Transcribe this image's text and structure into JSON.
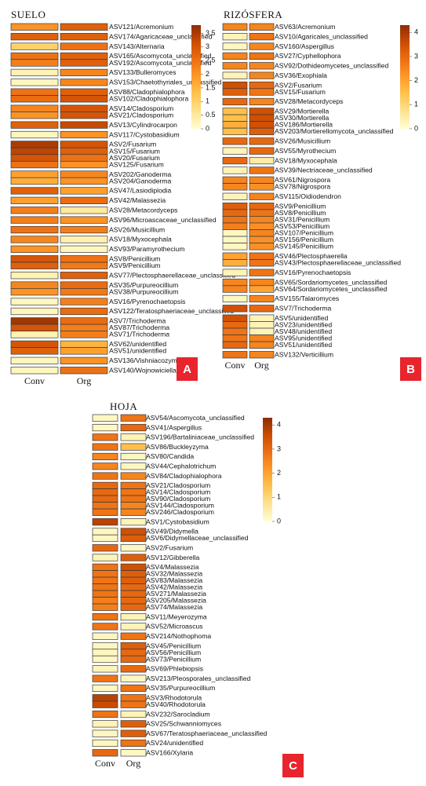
{
  "chart_data": [
    {
      "type": "heatmap",
      "title": "SUELO",
      "panel_label": "A",
      "columns": [
        "Conv",
        "Org"
      ],
      "colorscale": [
        "#ffffd4",
        "#fee391",
        "#fec44f",
        "#fe9929",
        "#ec7014",
        "#cc4c02",
        "#8c2d04"
      ],
      "zlim": [
        0,
        3.8
      ],
      "zticks": [
        0,
        0.5,
        1,
        1.5,
        2,
        2.5,
        3,
        3.5
      ],
      "rows": [
        "ASV121/Acremonium",
        "ASV174/Agaricaceae_unclassified",
        "ASV143/Alternaria",
        "ASV165/Ascomycota_unclassified",
        "ASV192/Ascomycota_unclassified",
        "ASV133/Bulleromyces",
        "ASV153/Chaetothyriales_unclassified",
        "ASV88/Cladophialophora",
        "ASV102/Cladophialophora",
        "ASV14/Cladosporium",
        "ASV21/Cladosporium",
        "ASV13/Cylindrocarpon",
        "ASV117/Cystobasidium",
        "ASV2/Fusarium",
        "ASV15/Fusarium",
        "ASV20/Fusarium",
        "ASV125/Fusarium",
        "ASV202/Ganoderma",
        "ASV204/Ganoderma",
        "ASV47/Lasiodiplodia",
        "ASV42/Malassezia",
        "ASV28/Metacordyceps",
        "ASV96/Microascaceae_unclassified",
        "ASV26/Musicillium",
        "ASV18/Myxocephala",
        "ASV93/Paramyrothecium",
        "ASV8/Penicillium",
        "ASV9/Penicillium",
        "ASV77/Plectosphaerellaceae_unclassified",
        "ASV35/Purpureocillium",
        "ASV38/Purpureocillium",
        "ASV16/Pyrenochaetopsis",
        "ASV122/Teratosphaeriaceae_unclassified",
        "ASV7/Trichoderma",
        "ASV87/Trichoderma",
        "ASV71/Trichoderma",
        "ASV62/unidentified",
        "ASV51/unidentified",
        "ASV136/Vishniacozyma",
        "ASV140/Wojnowiciella"
      ],
      "values": [
        [
          2,
          2.8
        ],
        [
          2.8,
          2.8
        ],
        [
          1,
          2.5
        ],
        [
          2.5,
          2.8
        ],
        [
          2.3,
          2.8
        ],
        [
          0.3,
          2.2
        ],
        [
          0.2,
          2.2
        ],
        [
          2.5,
          2.8
        ],
        [
          2.6,
          3
        ],
        [
          2.2,
          3
        ],
        [
          2,
          3
        ],
        [
          2.8,
          3.2
        ],
        [
          0.2,
          2
        ],
        [
          3.5,
          3
        ],
        [
          3.3,
          2.8
        ],
        [
          3,
          2.5
        ],
        [
          2.5,
          2
        ],
        [
          1.8,
          2.2
        ],
        [
          1.6,
          2
        ],
        [
          2.8,
          1.8
        ],
        [
          1.8,
          2.6
        ],
        [
          2.3,
          0.5
        ],
        [
          2.3,
          2
        ],
        [
          2.5,
          2.3
        ],
        [
          2.2,
          0.3
        ],
        [
          2,
          0.2
        ],
        [
          3,
          2.5
        ],
        [
          2.8,
          2.4
        ],
        [
          0.3,
          2.8
        ],
        [
          2.2,
          2.6
        ],
        [
          2,
          2.4
        ],
        [
          0.2,
          2.3
        ],
        [
          0.2,
          2.6
        ],
        [
          3.6,
          2.6
        ],
        [
          3,
          2.3
        ],
        [
          0.3,
          2.3
        ],
        [
          3,
          1.5
        ],
        [
          2.8,
          1.8
        ],
        [
          0.2,
          2
        ],
        [
          0.2,
          2.5
        ]
      ]
    },
    {
      "type": "heatmap",
      "title": "RIZÓSFERA",
      "panel_label": "B",
      "columns": [
        "Conv",
        "Org"
      ],
      "colorscale": [
        "#ffffd4",
        "#fee391",
        "#fec44f",
        "#fe9929",
        "#ec7014",
        "#cc4c02",
        "#8c2d04"
      ],
      "zlim": [
        0,
        4.3
      ],
      "zticks": [
        0,
        1,
        2,
        3,
        4
      ],
      "rows": [
        "ASV63/Acremonium",
        "ASV10/Agaricales_unclassified",
        "ASV160/Aspergillus",
        "ASV27/Cyphellophora",
        "ASV92/Dothideomycetes_unclassified",
        "ASV36/Exophiala",
        "ASV2/Fusarium",
        "ASV15/Fusarium",
        "ASV28/Metacordyceps",
        "ASV29/Mortierella",
        "ASV30/Mortierella",
        "ASV186/Mortierella",
        "ASV203/Mortierellomycota_unclassified",
        "ASV26/Musicillium",
        "ASV55/Myrothecium",
        "ASV18/Myxocephala",
        "ASV39/Nectriaceae_unclassified",
        "ASV61/Nigrospora",
        "ASV78/Nigrospora",
        "ASV115/Oidiodendron",
        "ASV9/Penicillium",
        "ASV8/Penicillium",
        "ASV31/Penicillium",
        "ASV53/Penicillium",
        "ASV107/Penicillium",
        "ASV156/Penicillium",
        "ASV145/Penicillium",
        "ASV46/Plectosphaerella",
        "ASV43/Plectosphaerellaceae_unclassified",
        "ASV16/Pyrenochaetopsis",
        "ASV65/Sordariomycetes_unclassified",
        "ASV64/Sordariomycetes_unclassified",
        "ASV155/Talaromyces",
        "ASV7/Trichoderma",
        "ASV5/unidentified",
        "ASV23/unidentified",
        "ASV48/unidentified",
        "ASV95/unidentified",
        "ASV51/unidentified",
        "ASV132/Verticillium"
      ],
      "values": [
        [
          2.5,
          2.5
        ],
        [
          0.3,
          2.8
        ],
        [
          0.2,
          2.5
        ],
        [
          2.5,
          2.8
        ],
        [
          2.5,
          2.5
        ],
        [
          0.3,
          2.5
        ],
        [
          3.5,
          3
        ],
        [
          3.2,
          2.8
        ],
        [
          3,
          2.5
        ],
        [
          1.5,
          3.5
        ],
        [
          1.5,
          3.5
        ],
        [
          1.8,
          3.5
        ],
        [
          1.5,
          3.2
        ],
        [
          3,
          3
        ],
        [
          0.3,
          3
        ],
        [
          3,
          0.5
        ],
        [
          0.3,
          2.8
        ],
        [
          2.5,
          2.5
        ],
        [
          2.5,
          2.3
        ],
        [
          0.3,
          2.5
        ],
        [
          3.2,
          3
        ],
        [
          3,
          2.8
        ],
        [
          2.8,
          2.5
        ],
        [
          2.6,
          2.3
        ],
        [
          0.2,
          2.5
        ],
        [
          0.2,
          2.3
        ],
        [
          0.2,
          2.3
        ],
        [
          2,
          2.8
        ],
        [
          1.8,
          2.8
        ],
        [
          0.3,
          2.8
        ],
        [
          2.5,
          2.5
        ],
        [
          2.5,
          2
        ],
        [
          0.2,
          2.5
        ],
        [
          3.5,
          3
        ],
        [
          3.5,
          0.3
        ],
        [
          3,
          0.3
        ],
        [
          2.8,
          0.3
        ],
        [
          2.8,
          2.5
        ],
        [
          3,
          2.5
        ],
        [
          2.8,
          2.5
        ]
      ]
    },
    {
      "type": "heatmap",
      "title": "HOJA",
      "panel_label": "C",
      "columns": [
        "Conv",
        "Org"
      ],
      "colorscale": [
        "#ffffd4",
        "#fee391",
        "#fec44f",
        "#fe9929",
        "#ec7014",
        "#cc4c02",
        "#8c2d04"
      ],
      "zlim": [
        0,
        4.3
      ],
      "zticks": [
        0,
        1,
        2,
        3,
        4
      ],
      "rows": [
        "ASV54/Ascomycota_unclassified",
        "ASV41/Aspergillus",
        "ASV196/Bartaliniaceae_unclassified",
        "ASV86/Buckleyzyma",
        "ASV80/Candida",
        "ASV44/Cephalotrichum",
        "ASV84/Cladophialophora",
        "ASV21/Cladosporium",
        "ASV14/Cladosporium",
        "ASV90/Cladosporium",
        "ASV144/Cladosporium",
        "ASV246/Cladosporium",
        "ASV1/Cystobasidium",
        "ASV49/Didymella",
        "ASV6/Didymellaceae_unclassified",
        "ASV2/Fusarium",
        "ASV12/Gibberella",
        "ASV4/Malassezia",
        "ASV32/Malassezia",
        "ASV83/Malassezia",
        "ASV42/Malassezia",
        "ASV271/Malassezia",
        "ASV205/Malassezia",
        "ASV74/Malassezia",
        "ASV11/Meyerozyma",
        "ASV52/Microascus",
        "ASV214/Nothophoma",
        "ASV45/Penicillium",
        "ASV56/Penicillium",
        "ASV73/Penicillium",
        "ASV69/Phlebiopsis",
        "ASV213/Pleosporales_unclassified",
        "ASV35/Purpureocillium",
        "ASV3/Rhodotorula",
        "ASV40/Rhodotorula",
        "ASV232/Sarocladium",
        "ASV25/Schwanniomyces",
        "ASV67/Teratosphaeriaceae_unclassified",
        "ASV24/unidentified",
        "ASV166/Xylaria"
      ],
      "values": [
        [
          0.2,
          2.8
        ],
        [
          0.2,
          3
        ],
        [
          2.8,
          0.3
        ],
        [
          2.8,
          1.5
        ],
        [
          2.5,
          0.2
        ],
        [
          2.5,
          0.2
        ],
        [
          2.8,
          2.5
        ],
        [
          3,
          2.8
        ],
        [
          3,
          2.8
        ],
        [
          3,
          2.8
        ],
        [
          2.8,
          2.5
        ],
        [
          2.8,
          2.5
        ],
        [
          3.8,
          0.3
        ],
        [
          0.2,
          3.5
        ],
        [
          0.2,
          3.2
        ],
        [
          3,
          0.2
        ],
        [
          0.3,
          3.2
        ],
        [
          2.8,
          3.5
        ],
        [
          2.8,
          3.2
        ],
        [
          2.8,
          3.2
        ],
        [
          2.8,
          3
        ],
        [
          2.8,
          3
        ],
        [
          2.6,
          3
        ],
        [
          2.6,
          3
        ],
        [
          2.8,
          0.3
        ],
        [
          2.8,
          0.3
        ],
        [
          0.2,
          2.8
        ],
        [
          0.2,
          3.2
        ],
        [
          0.2,
          3
        ],
        [
          0.2,
          3
        ],
        [
          0.3,
          3
        ],
        [
          2.8,
          0.2
        ],
        [
          0.2,
          2.8
        ],
        [
          3.8,
          2.8
        ],
        [
          3.6,
          2.8
        ],
        [
          2.8,
          0.3
        ],
        [
          0.3,
          3.2
        ],
        [
          0.2,
          3.2
        ],
        [
          0.2,
          2.8
        ],
        [
          3,
          0.2
        ]
      ]
    }
  ]
}
